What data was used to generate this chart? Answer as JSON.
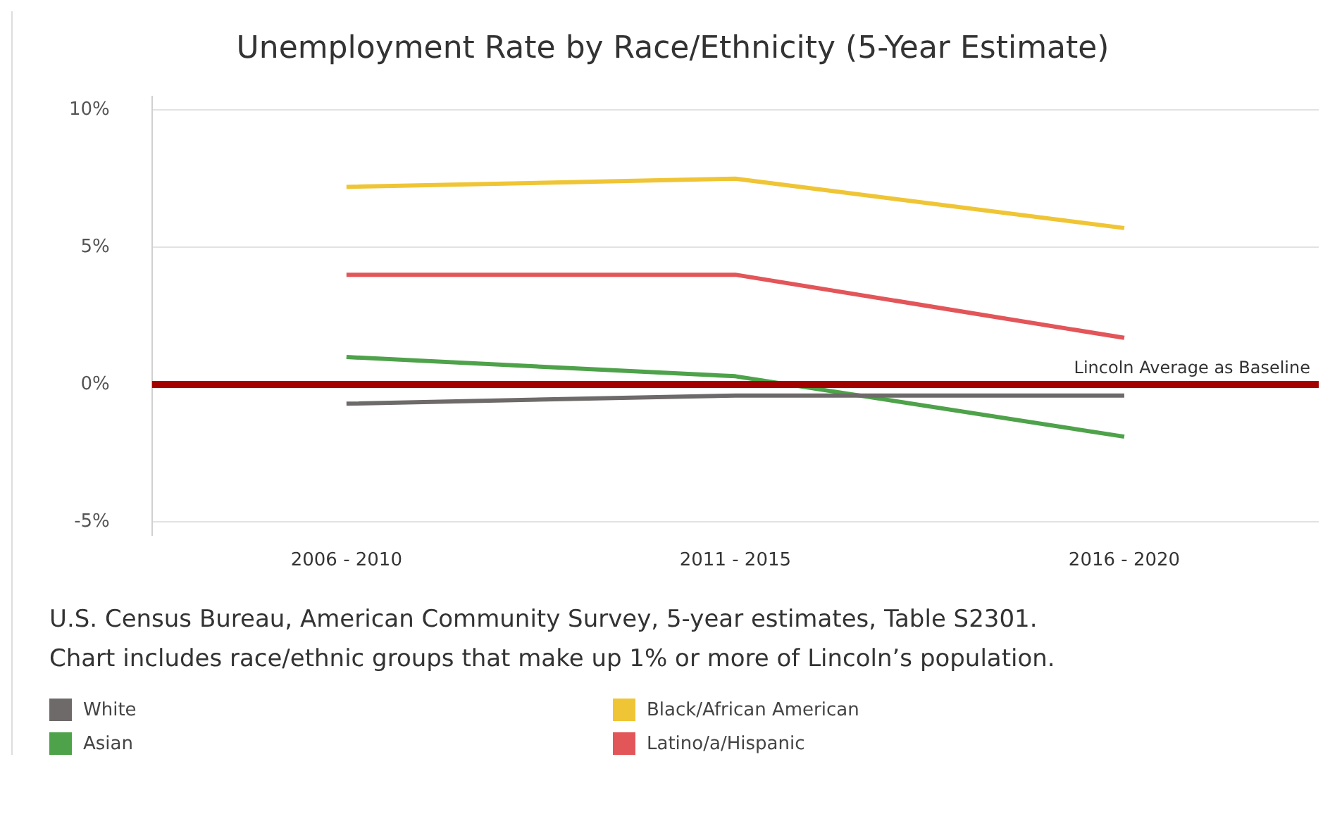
{
  "chart_data": {
    "type": "line",
    "title": "Unemployment Rate by Race/Ethnicity (5-Year Estimate)",
    "categories": [
      "2006 - 2010",
      "2011 - 2015",
      "2016 - 2020"
    ],
    "series": [
      {
        "name": "White",
        "color": "#6e6a6a",
        "values": [
          -0.7,
          -0.4,
          -0.4
        ]
      },
      {
        "name": "Asian",
        "color": "#4ea24a",
        "values": [
          1.0,
          0.3,
          -1.9
        ]
      },
      {
        "name": "Black/African American",
        "color": "#efc535",
        "values": [
          7.2,
          7.5,
          5.7
        ]
      },
      {
        "name": "Latino/a/Hispanic",
        "color": "#e25559",
        "values": [
          4.0,
          4.0,
          1.7
        ]
      }
    ],
    "ylim": [
      -5.5,
      10.5
    ],
    "yticks": [
      {
        "value": -5,
        "label": "-5%"
      },
      {
        "value": 0,
        "label": "0%"
      },
      {
        "value": 5,
        "label": "5%"
      },
      {
        "value": 10,
        "label": "10%"
      }
    ],
    "grid": "y",
    "legend": "bottom",
    "marker": "none",
    "line_style": "solid",
    "ref_lines": [
      {
        "axis": "y",
        "value": 0,
        "label": "Lincoln Average as Baseline",
        "color": "#a30000"
      }
    ],
    "annotations": [
      "U.S. Census Bureau, American Community Survey, 5-year estimates, Table S2301.",
      "Chart includes race/ethnic groups that make up 1% or more of Lincoln’s population."
    ]
  }
}
